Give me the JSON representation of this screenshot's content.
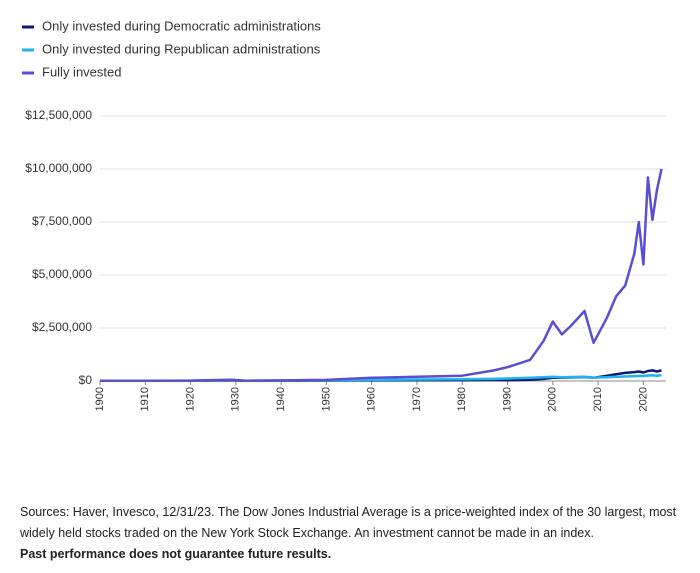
{
  "chart_data": {
    "type": "line",
    "x": [
      1900,
      1910,
      1920,
      1929,
      1932,
      1940,
      1950,
      1960,
      1970,
      1980,
      1987,
      1990,
      1995,
      1998,
      2000,
      2002,
      2004,
      2007,
      2009,
      2012,
      2014,
      2016,
      2018,
      2019,
      2020,
      2021,
      2022,
      2023,
      2024
    ],
    "series": [
      {
        "name": "Only invested during Democratic administrations",
        "color": "#0d1a6b",
        "values": [
          10000,
          11000,
          12000,
          30000,
          10000,
          15000,
          20000,
          30000,
          40000,
          40000,
          45000,
          40000,
          60000,
          100000,
          150000,
          160000,
          170000,
          190000,
          150000,
          250000,
          320000,
          380000,
          420000,
          450000,
          400000,
          470000,
          500000,
          450000,
          500000
        ]
      },
      {
        "name": "Only invested during Republican administrations",
        "color": "#1fb3ef",
        "values": [
          10000,
          12000,
          15000,
          50000,
          15000,
          20000,
          30000,
          50000,
          70000,
          80000,
          100000,
          120000,
          150000,
          180000,
          200000,
          180000,
          190000,
          200000,
          160000,
          180000,
          200000,
          210000,
          230000,
          240000,
          230000,
          260000,
          270000,
          250000,
          280000
        ]
      },
      {
        "name": "Fully invested",
        "color": "#5a4fd0",
        "values": [
          10000,
          15000,
          20000,
          60000,
          15000,
          30000,
          50000,
          150000,
          200000,
          250000,
          500000,
          650000,
          1000000,
          1900000,
          2800000,
          2200000,
          2600000,
          3300000,
          1800000,
          3000000,
          4000000,
          4500000,
          6000000,
          7500000,
          5500000,
          9600000,
          7600000,
          9000000,
          10000000
        ]
      }
    ],
    "xlim": [
      1900,
      2025
    ],
    "xticks": [
      1900,
      1910,
      1920,
      1930,
      1940,
      1950,
      1960,
      1970,
      1980,
      1990,
      2000,
      2010,
      2020
    ],
    "ylim": [
      0,
      12500000
    ],
    "yticks": [
      {
        "value": 0,
        "label": "$0"
      },
      {
        "value": 2500000,
        "label": "$2,500,000"
      },
      {
        "value": 5000000,
        "label": "$5,000,000"
      },
      {
        "value": 7500000,
        "label": "$7,500,000"
      },
      {
        "value": 10000000,
        "label": "$10,000,000"
      },
      {
        "value": 12500000,
        "label": "$12,500,000"
      }
    ],
    "grid": true
  },
  "footer": {
    "sources": "Sources: Haver, Invesco, 12/31/23. The Dow Jones Industrial Average is a price-weighted index of the 30 largest, most widely held stocks traded on the New York Stock Exchange. An investment cannot be made in an index.",
    "disclaimer": "Past performance does not guarantee future results."
  }
}
